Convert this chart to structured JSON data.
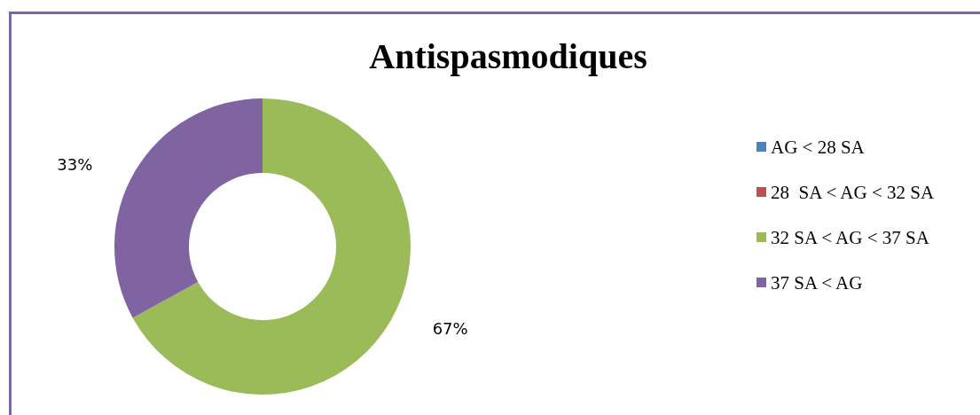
{
  "chart_data": {
    "type": "donut",
    "title": "Antispasmodiques",
    "categories": [
      "AG < 28 SA",
      "28  SA < AG < 32 SA",
      "32 SA < AG < 37 SA",
      "37 SA < AG"
    ],
    "values": [
      0,
      0,
      67,
      33
    ],
    "colors": [
      "#4f81bd",
      "#c0504d",
      "#9bbb59",
      "#8064a2"
    ],
    "value_labels": [
      null,
      null,
      "67%",
      "33%"
    ],
    "legend": "right"
  }
}
